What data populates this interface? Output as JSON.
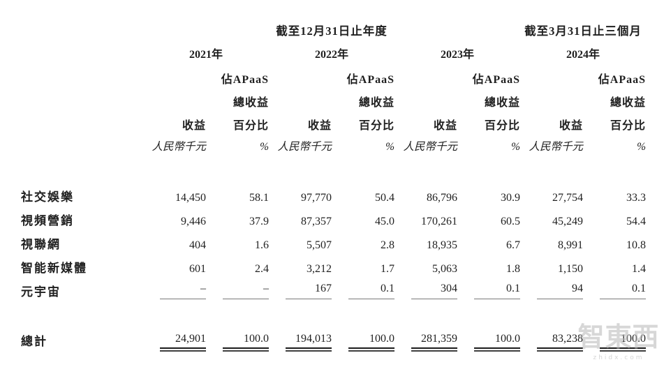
{
  "table": {
    "period_headers": [
      {
        "label": "截至12月31日止年度"
      },
      {
        "label": "截至3月31日止三個月"
      }
    ],
    "years": [
      "2021年",
      "2022年",
      "2023年",
      "2024年"
    ],
    "col_headers": {
      "pct_line1": "佔APaaS",
      "pct_line2": "總收益",
      "revenue": "收益",
      "pct_line3": "百分比",
      "unit_rmb": "人民幣千元",
      "unit_pct": "%"
    },
    "rows": [
      {
        "label": "社交娛樂",
        "values": [
          "14,450",
          "58.1",
          "97,770",
          "50.4",
          "86,796",
          "30.9",
          "27,754",
          "33.3"
        ]
      },
      {
        "label": "視頻營銷",
        "values": [
          "9,446",
          "37.9",
          "87,357",
          "45.0",
          "170,261",
          "60.5",
          "45,249",
          "54.4"
        ]
      },
      {
        "label": "視聯網",
        "values": [
          "404",
          "1.6",
          "5,507",
          "2.8",
          "18,935",
          "6.7",
          "8,991",
          "10.8"
        ]
      },
      {
        "label": "智能新媒體",
        "values": [
          "601",
          "2.4",
          "3,212",
          "1.7",
          "5,063",
          "1.8",
          "1,150",
          "1.4"
        ]
      },
      {
        "label": "元宇宙",
        "values": [
          "–",
          "–",
          "167",
          "0.1",
          "304",
          "0.1",
          "94",
          "0.1"
        ]
      }
    ],
    "total": {
      "label": "總計",
      "values": [
        "24,901",
        "100.0",
        "194,013",
        "100.0",
        "281,359",
        "100.0",
        "83,238",
        "100.0"
      ]
    }
  },
  "watermark": {
    "logo": "智東西",
    "site": "zhidx.com"
  }
}
